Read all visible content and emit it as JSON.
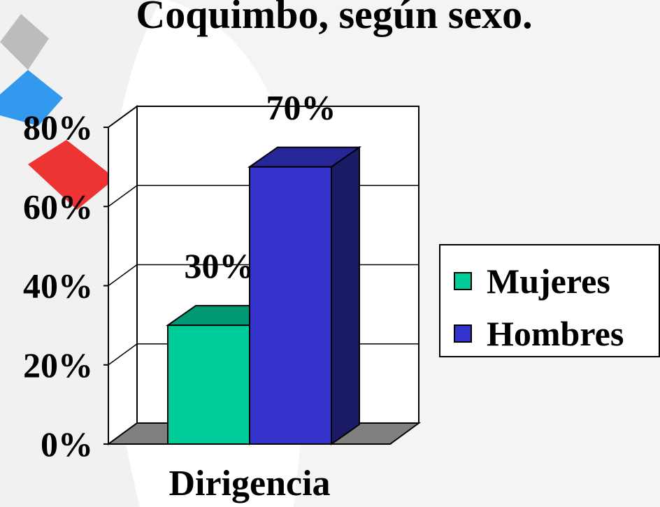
{
  "chart_data": {
    "type": "bar3d",
    "title": "Coquimbo, según sexo.",
    "categories": [
      "Dirigencia"
    ],
    "series": [
      {
        "name": "Mujeres",
        "color": "#00cc99",
        "values": [
          30
        ],
        "value_labels": [
          "30%"
        ]
      },
      {
        "name": "Hombres",
        "color": "#3333cc",
        "values": [
          70
        ],
        "value_labels": [
          "70%"
        ]
      }
    ],
    "ylim": [
      0,
      80
    ],
    "yticks": [
      {
        "value": 0,
        "label": "0%"
      },
      {
        "value": 20,
        "label": "20%"
      },
      {
        "value": 40,
        "label": "40%"
      },
      {
        "value": 60,
        "label": "60%"
      },
      {
        "value": 80,
        "label": "80%"
      }
    ],
    "grid": true,
    "legend": "right"
  }
}
